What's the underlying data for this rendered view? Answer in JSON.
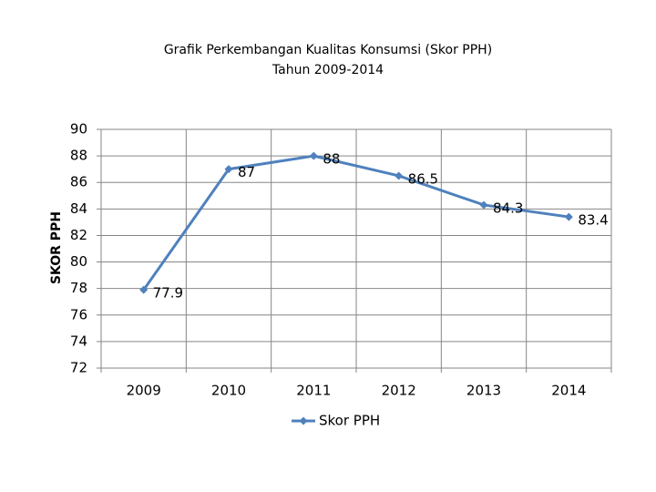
{
  "chart_data": {
    "type": "line",
    "title": "Grafik Perkembangan Kualitas Konsumsi (Skor PPH)",
    "subtitle": "Tahun 2009-2014",
    "y_label": "SKOR PPH",
    "categories": [
      "2009",
      "2010",
      "2011",
      "2012",
      "2013",
      "2014"
    ],
    "series": [
      {
        "name": "Skor PPH",
        "color": "#4f81bd",
        "values": [
          77.9,
          87,
          88,
          86.5,
          84.3,
          83.4
        ]
      }
    ],
    "ylim": [
      72,
      90
    ],
    "yticks": [
      72,
      74,
      76,
      78,
      80,
      82,
      84,
      86,
      88,
      90
    ],
    "grid": true,
    "legend": "bottom"
  }
}
